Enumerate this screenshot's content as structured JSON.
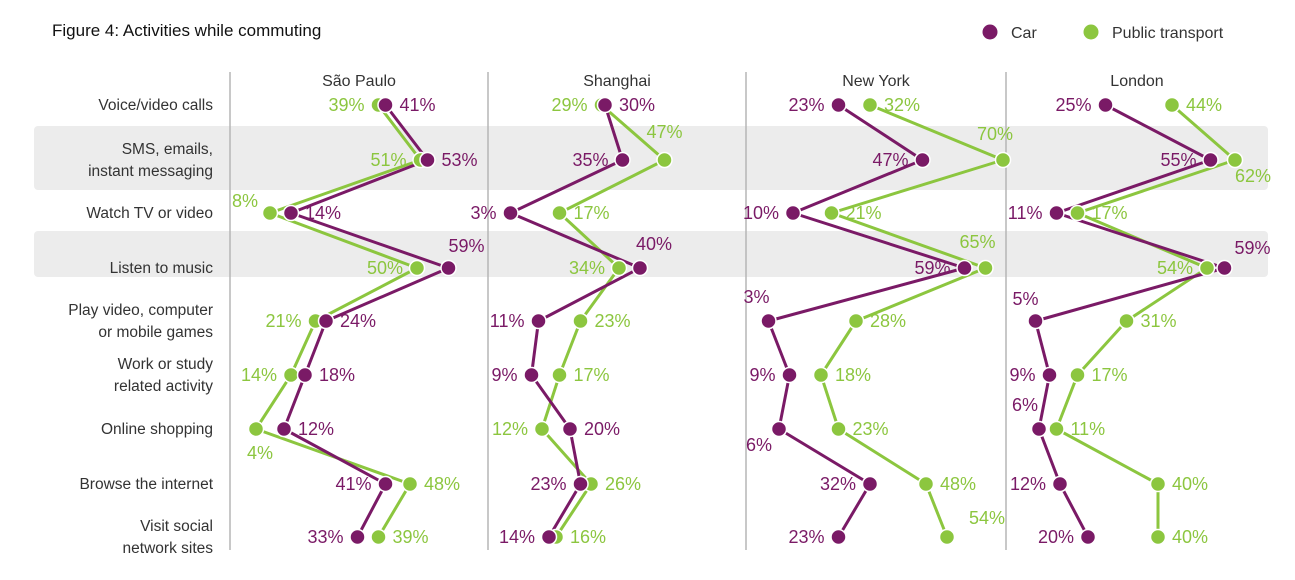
{
  "chart_data": {
    "type": "line",
    "title": "Figure 4: Activities while commuting",
    "categories": [
      "Voice/video calls",
      "SMS, emails,\ninstant messaging",
      "Watch TV or video",
      "Listen to music",
      "Play video, computer\nor mobile games",
      "Work or study\nrelated activity",
      "Online shopping",
      "Browse the internet",
      "Visit social\nnetwork sites"
    ],
    "panels": [
      {
        "name": "São Paulo",
        "car": [
          41,
          53,
          14,
          59,
          24,
          18,
          12,
          41,
          33
        ],
        "public_transport": [
          39,
          51,
          8,
          50,
          21,
          14,
          4,
          48,
          39
        ]
      },
      {
        "name": "Shanghai",
        "car": [
          30,
          35,
          3,
          40,
          11,
          9,
          20,
          23,
          14
        ],
        "public_transport": [
          29,
          47,
          17,
          34,
          23,
          17,
          12,
          26,
          16
        ]
      },
      {
        "name": "New York",
        "car": [
          23,
          47,
          10,
          59,
          3,
          9,
          6,
          32,
          23
        ],
        "public_transport": [
          32,
          70,
          21,
          65,
          28,
          18,
          23,
          48,
          54
        ]
      },
      {
        "name": "London",
        "car": [
          25,
          55,
          11,
          59,
          5,
          9,
          6,
          12,
          20
        ],
        "public_transport": [
          44,
          62,
          17,
          54,
          31,
          17,
          11,
          40,
          40
        ]
      }
    ],
    "series": [
      {
        "name": "Car",
        "key": "car",
        "color": "#7a1a66"
      },
      {
        "name": "Public transport",
        "key": "public_transport",
        "color": "#8cc63f"
      }
    ],
    "value_suffix": "%",
    "legend_position": "top-right",
    "grid": false,
    "highlight_band_color": "#ececec"
  }
}
